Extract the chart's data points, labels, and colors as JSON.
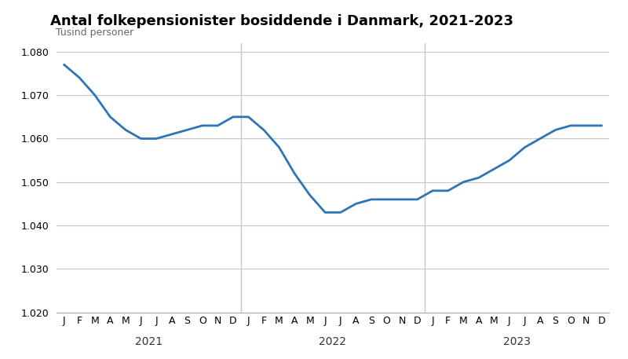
{
  "title": "Antal folkepensionister bosiddende i Danmark, 2021-2023",
  "ylabel": "Tusind personer",
  "line_color": "#2e75b6",
  "background_color": "#ffffff",
  "grid_color": "#c8c8c8",
  "ylim": [
    1.02,
    1.082
  ],
  "yticks": [
    1.02,
    1.03,
    1.04,
    1.05,
    1.06,
    1.07,
    1.08
  ],
  "months_labels": [
    "J",
    "F",
    "M",
    "A",
    "M",
    "J",
    "J",
    "A",
    "S",
    "O",
    "N",
    "D",
    "J",
    "F",
    "M",
    "A",
    "M",
    "J",
    "J",
    "A",
    "S",
    "O",
    "N",
    "D",
    "J",
    "F",
    "M",
    "A",
    "M",
    "J",
    "J",
    "A",
    "S",
    "O",
    "N",
    "D"
  ],
  "year_labels": [
    "2021",
    "2022",
    "2023"
  ],
  "year_label_xpos": [
    5.5,
    17.5,
    29.5
  ],
  "vline_positions": [
    11.5,
    23.5
  ],
  "values": [
    1.077,
    1.074,
    1.07,
    1.065,
    1.062,
    1.06,
    1.06,
    1.061,
    1.062,
    1.063,
    1.063,
    1.065,
    1.065,
    1.062,
    1.058,
    1.052,
    1.047,
    1.043,
    1.043,
    1.045,
    1.046,
    1.046,
    1.046,
    1.046,
    1.048,
    1.048,
    1.05,
    1.051,
    1.053,
    1.055,
    1.058,
    1.06,
    1.062,
    1.063,
    1.063,
    1.063
  ],
  "line_width": 2.0,
  "title_fontsize": 13,
  "ylabel_fontsize": 9,
  "tick_fontsize": 9,
  "year_fontsize": 10
}
